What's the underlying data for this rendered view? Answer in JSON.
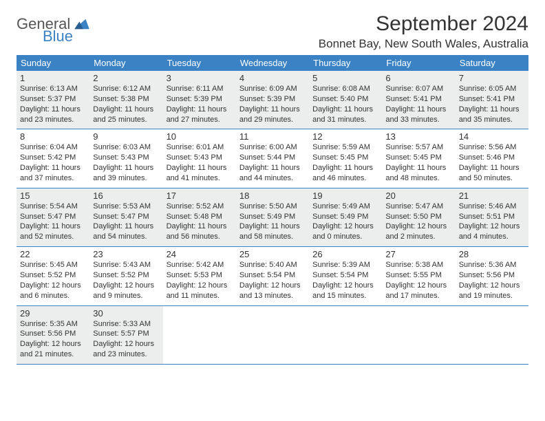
{
  "logo": {
    "top": "General",
    "bottom": "Blue"
  },
  "title": "September 2024",
  "location": "Bonnet Bay, New South Wales, Australia",
  "colors": {
    "header_bg": "#3b82c4",
    "shaded_bg": "#eceded",
    "text": "#333333",
    "logo_gray": "#555555",
    "logo_blue": "#3b82c4"
  },
  "day_names": [
    "Sunday",
    "Monday",
    "Tuesday",
    "Wednesday",
    "Thursday",
    "Friday",
    "Saturday"
  ],
  "weeks": [
    [
      {
        "num": "1",
        "shaded": true,
        "sunrise": "Sunrise: 6:13 AM",
        "sunset": "Sunset: 5:37 PM",
        "dl1": "Daylight: 11 hours",
        "dl2": "and 23 minutes."
      },
      {
        "num": "2",
        "shaded": true,
        "sunrise": "Sunrise: 6:12 AM",
        "sunset": "Sunset: 5:38 PM",
        "dl1": "Daylight: 11 hours",
        "dl2": "and 25 minutes."
      },
      {
        "num": "3",
        "shaded": true,
        "sunrise": "Sunrise: 6:11 AM",
        "sunset": "Sunset: 5:39 PM",
        "dl1": "Daylight: 11 hours",
        "dl2": "and 27 minutes."
      },
      {
        "num": "4",
        "shaded": true,
        "sunrise": "Sunrise: 6:09 AM",
        "sunset": "Sunset: 5:39 PM",
        "dl1": "Daylight: 11 hours",
        "dl2": "and 29 minutes."
      },
      {
        "num": "5",
        "shaded": true,
        "sunrise": "Sunrise: 6:08 AM",
        "sunset": "Sunset: 5:40 PM",
        "dl1": "Daylight: 11 hours",
        "dl2": "and 31 minutes."
      },
      {
        "num": "6",
        "shaded": true,
        "sunrise": "Sunrise: 6:07 AM",
        "sunset": "Sunset: 5:41 PM",
        "dl1": "Daylight: 11 hours",
        "dl2": "and 33 minutes."
      },
      {
        "num": "7",
        "shaded": true,
        "sunrise": "Sunrise: 6:05 AM",
        "sunset": "Sunset: 5:41 PM",
        "dl1": "Daylight: 11 hours",
        "dl2": "and 35 minutes."
      }
    ],
    [
      {
        "num": "8",
        "shaded": false,
        "sunrise": "Sunrise: 6:04 AM",
        "sunset": "Sunset: 5:42 PM",
        "dl1": "Daylight: 11 hours",
        "dl2": "and 37 minutes."
      },
      {
        "num": "9",
        "shaded": false,
        "sunrise": "Sunrise: 6:03 AM",
        "sunset": "Sunset: 5:43 PM",
        "dl1": "Daylight: 11 hours",
        "dl2": "and 39 minutes."
      },
      {
        "num": "10",
        "shaded": false,
        "sunrise": "Sunrise: 6:01 AM",
        "sunset": "Sunset: 5:43 PM",
        "dl1": "Daylight: 11 hours",
        "dl2": "and 41 minutes."
      },
      {
        "num": "11",
        "shaded": false,
        "sunrise": "Sunrise: 6:00 AM",
        "sunset": "Sunset: 5:44 PM",
        "dl1": "Daylight: 11 hours",
        "dl2": "and 44 minutes."
      },
      {
        "num": "12",
        "shaded": false,
        "sunrise": "Sunrise: 5:59 AM",
        "sunset": "Sunset: 5:45 PM",
        "dl1": "Daylight: 11 hours",
        "dl2": "and 46 minutes."
      },
      {
        "num": "13",
        "shaded": false,
        "sunrise": "Sunrise: 5:57 AM",
        "sunset": "Sunset: 5:45 PM",
        "dl1": "Daylight: 11 hours",
        "dl2": "and 48 minutes."
      },
      {
        "num": "14",
        "shaded": false,
        "sunrise": "Sunrise: 5:56 AM",
        "sunset": "Sunset: 5:46 PM",
        "dl1": "Daylight: 11 hours",
        "dl2": "and 50 minutes."
      }
    ],
    [
      {
        "num": "15",
        "shaded": true,
        "sunrise": "Sunrise: 5:54 AM",
        "sunset": "Sunset: 5:47 PM",
        "dl1": "Daylight: 11 hours",
        "dl2": "and 52 minutes."
      },
      {
        "num": "16",
        "shaded": true,
        "sunrise": "Sunrise: 5:53 AM",
        "sunset": "Sunset: 5:47 PM",
        "dl1": "Daylight: 11 hours",
        "dl2": "and 54 minutes."
      },
      {
        "num": "17",
        "shaded": true,
        "sunrise": "Sunrise: 5:52 AM",
        "sunset": "Sunset: 5:48 PM",
        "dl1": "Daylight: 11 hours",
        "dl2": "and 56 minutes."
      },
      {
        "num": "18",
        "shaded": true,
        "sunrise": "Sunrise: 5:50 AM",
        "sunset": "Sunset: 5:49 PM",
        "dl1": "Daylight: 11 hours",
        "dl2": "and 58 minutes."
      },
      {
        "num": "19",
        "shaded": true,
        "sunrise": "Sunrise: 5:49 AM",
        "sunset": "Sunset: 5:49 PM",
        "dl1": "Daylight: 12 hours",
        "dl2": "and 0 minutes."
      },
      {
        "num": "20",
        "shaded": true,
        "sunrise": "Sunrise: 5:47 AM",
        "sunset": "Sunset: 5:50 PM",
        "dl1": "Daylight: 12 hours",
        "dl2": "and 2 minutes."
      },
      {
        "num": "21",
        "shaded": true,
        "sunrise": "Sunrise: 5:46 AM",
        "sunset": "Sunset: 5:51 PM",
        "dl1": "Daylight: 12 hours",
        "dl2": "and 4 minutes."
      }
    ],
    [
      {
        "num": "22",
        "shaded": false,
        "sunrise": "Sunrise: 5:45 AM",
        "sunset": "Sunset: 5:52 PM",
        "dl1": "Daylight: 12 hours",
        "dl2": "and 6 minutes."
      },
      {
        "num": "23",
        "shaded": false,
        "sunrise": "Sunrise: 5:43 AM",
        "sunset": "Sunset: 5:52 PM",
        "dl1": "Daylight: 12 hours",
        "dl2": "and 9 minutes."
      },
      {
        "num": "24",
        "shaded": false,
        "sunrise": "Sunrise: 5:42 AM",
        "sunset": "Sunset: 5:53 PM",
        "dl1": "Daylight: 12 hours",
        "dl2": "and 11 minutes."
      },
      {
        "num": "25",
        "shaded": false,
        "sunrise": "Sunrise: 5:40 AM",
        "sunset": "Sunset: 5:54 PM",
        "dl1": "Daylight: 12 hours",
        "dl2": "and 13 minutes."
      },
      {
        "num": "26",
        "shaded": false,
        "sunrise": "Sunrise: 5:39 AM",
        "sunset": "Sunset: 5:54 PM",
        "dl1": "Daylight: 12 hours",
        "dl2": "and 15 minutes."
      },
      {
        "num": "27",
        "shaded": false,
        "sunrise": "Sunrise: 5:38 AM",
        "sunset": "Sunset: 5:55 PM",
        "dl1": "Daylight: 12 hours",
        "dl2": "and 17 minutes."
      },
      {
        "num": "28",
        "shaded": false,
        "sunrise": "Sunrise: 5:36 AM",
        "sunset": "Sunset: 5:56 PM",
        "dl1": "Daylight: 12 hours",
        "dl2": "and 19 minutes."
      }
    ],
    [
      {
        "num": "29",
        "shaded": true,
        "sunrise": "Sunrise: 5:35 AM",
        "sunset": "Sunset: 5:56 PM",
        "dl1": "Daylight: 12 hours",
        "dl2": "and 21 minutes."
      },
      {
        "num": "30",
        "shaded": true,
        "sunrise": "Sunrise: 5:33 AM",
        "sunset": "Sunset: 5:57 PM",
        "dl1": "Daylight: 12 hours",
        "dl2": "and 23 minutes."
      },
      {
        "empty": true
      },
      {
        "empty": true
      },
      {
        "empty": true
      },
      {
        "empty": true
      },
      {
        "empty": true
      }
    ]
  ]
}
